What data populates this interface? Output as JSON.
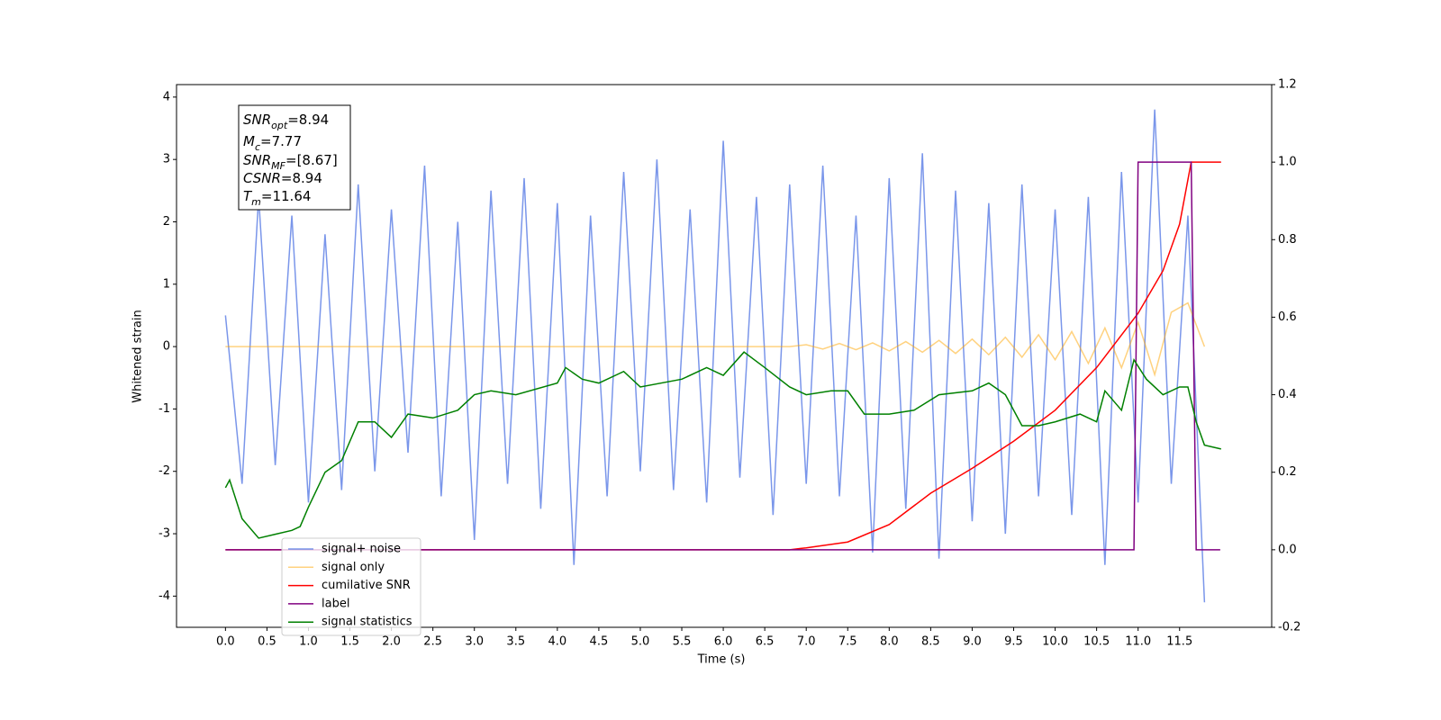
{
  "chart_data": {
    "type": "line",
    "xlabel": "Time (s)",
    "ylabel": "Whitened strain",
    "xlim": [
      -0.59,
      12.61
    ],
    "xticks": [
      {
        "value": 0,
        "label": "0.0"
      },
      {
        "value": 0.5,
        "label": "0.5"
      },
      {
        "value": 1,
        "label": "1.0"
      },
      {
        "value": 1.5,
        "label": "1.5"
      },
      {
        "value": 2,
        "label": "2.0"
      },
      {
        "value": 2.5,
        "label": "2.5"
      },
      {
        "value": 3,
        "label": "3.0"
      },
      {
        "value": 3.5,
        "label": "3.5"
      },
      {
        "value": 4,
        "label": "4.0"
      },
      {
        "value": 4.5,
        "label": "4.5"
      },
      {
        "value": 5,
        "label": "5.0"
      },
      {
        "value": 5.5,
        "label": "5.5"
      },
      {
        "value": 6,
        "label": "6.0"
      },
      {
        "value": 6.5,
        "label": "6.5"
      },
      {
        "value": 7,
        "label": "7.0"
      },
      {
        "value": 7.5,
        "label": "7.5"
      },
      {
        "value": 8,
        "label": "8.0"
      },
      {
        "value": 8.5,
        "label": "8.5"
      },
      {
        "value": 9,
        "label": "9.0"
      },
      {
        "value": 9.5,
        "label": "9.5"
      },
      {
        "value": 10,
        "label": "10.0"
      },
      {
        "value": 10.5,
        "label": "10.5"
      },
      {
        "value": 11,
        "label": "11.0"
      },
      {
        "value": 11.5,
        "label": "11.5"
      }
    ],
    "ylim": [
      -4.5,
      4.2
    ],
    "yticks": [
      -4,
      -3,
      -2,
      -1,
      0,
      1,
      2,
      3,
      4
    ],
    "y2lim": [
      -0.2,
      1.2
    ],
    "y2ticks": [
      -0.2,
      0.0,
      0.2,
      0.4,
      0.6,
      0.8,
      1.0,
      1.2
    ],
    "legend": "lower left",
    "annotation": [
      [
        "SNR",
        "opt",
        "=8.94"
      ],
      [
        "M",
        "c",
        "=7.77"
      ],
      [
        "SNR",
        "MF",
        "=[8.67]"
      ],
      [
        "CSNR",
        "",
        "=8.94"
      ],
      [
        "T",
        "m",
        "=11.64"
      ]
    ],
    "series": [
      {
        "name": "signal+ noise",
        "color": "#4169e1",
        "opacity": 0.7,
        "axis": "y",
        "x": [
          0,
          0.2,
          0.4,
          0.6,
          0.8,
          1,
          1.2,
          1.4,
          1.6,
          1.8,
          2,
          2.2,
          2.4,
          2.6,
          2.8,
          3,
          3.2,
          3.4,
          3.6,
          3.8,
          4,
          4.2,
          4.4,
          4.6,
          4.8,
          5,
          5.2,
          5.4,
          5.6,
          5.8,
          6,
          6.2,
          6.4,
          6.6,
          6.8,
          7,
          7.2,
          7.4,
          7.6,
          7.8,
          8,
          8.2,
          8.4,
          8.6,
          8.8,
          9,
          9.2,
          9.4,
          9.6,
          9.8,
          10,
          10.2,
          10.4,
          10.6,
          10.8,
          11,
          11.2,
          11.4,
          11.6,
          11.8
        ],
        "values": [
          0.5,
          -2.2,
          2.4,
          -1.9,
          2.1,
          -2.5,
          1.8,
          -2.3,
          2.6,
          -2.0,
          2.2,
          -1.7,
          2.9,
          -2.4,
          2.0,
          -3.1,
          2.5,
          -2.2,
          2.7,
          -2.6,
          2.3,
          -3.5,
          2.1,
          -2.4,
          2.8,
          -2.0,
          3.0,
          -2.3,
          2.2,
          -2.5,
          3.3,
          -2.1,
          2.4,
          -2.7,
          2.6,
          -2.2,
          2.9,
          -2.4,
          2.1,
          -3.3,
          2.7,
          -2.6,
          3.1,
          -3.4,
          2.5,
          -2.8,
          2.3,
          -3.0,
          2.6,
          -2.4,
          2.2,
          -2.7,
          2.4,
          -3.5,
          2.8,
          -2.5,
          3.8,
          -2.2,
          2.1,
          -4.1
        ]
      },
      {
        "name": "signal only",
        "color": "#ffa500",
        "opacity": 0.5,
        "axis": "y",
        "x": [
          0,
          0.2,
          0.4,
          0.6,
          0.8,
          1,
          1.2,
          1.4,
          1.6,
          1.8,
          2,
          2.2,
          2.4,
          2.6,
          2.8,
          3,
          3.2,
          3.4,
          3.6,
          3.8,
          4,
          4.2,
          4.4,
          4.6,
          4.8,
          5,
          5.2,
          5.4,
          5.6,
          5.8,
          6,
          6.2,
          6.4,
          6.6,
          6.8,
          7,
          7.2,
          7.4,
          7.6,
          7.8,
          8,
          8.2,
          8.4,
          8.6,
          8.8,
          9,
          9.2,
          9.4,
          9.6,
          9.8,
          10,
          10.2,
          10.4,
          10.6,
          10.8,
          11,
          11.2,
          11.4,
          11.6,
          11.8
        ],
        "values": [
          0,
          0,
          0,
          0,
          0,
          0,
          0,
          0,
          0,
          0,
          0,
          0,
          0,
          0,
          0,
          0,
          0,
          0,
          0,
          0,
          0,
          0,
          0,
          0,
          0,
          0,
          0,
          0,
          0,
          0,
          0,
          0,
          0,
          0,
          0,
          0.03,
          -0.04,
          0.05,
          -0.05,
          0.06,
          -0.07,
          0.08,
          -0.09,
          0.1,
          -0.11,
          0.12,
          -0.13,
          0.15,
          -0.17,
          0.19,
          -0.21,
          0.24,
          -0.27,
          0.3,
          -0.34,
          0.39,
          -0.45,
          0.55,
          0.7,
          0
        ]
      },
      {
        "name": "cumilative SNR",
        "color": "#ff0000",
        "opacity": 1,
        "axis": "y2",
        "x": [
          0,
          6.8,
          7,
          7.5,
          8,
          8.5,
          9,
          9.5,
          10,
          10.5,
          11,
          11.3,
          11.5,
          11.64,
          12
        ],
        "values": [
          0,
          0,
          0.005,
          0.02,
          0.065,
          0.146,
          0.21,
          0.28,
          0.36,
          0.47,
          0.61,
          0.72,
          0.84,
          1,
          1
        ]
      },
      {
        "name": "label",
        "color": "#800080",
        "opacity": 1,
        "axis": "y2",
        "x": [
          0,
          10.95,
          11,
          11.64,
          11.7,
          11.99
        ],
        "values": [
          0,
          0,
          1,
          1,
          0,
          0
        ]
      },
      {
        "name": "signal statistics",
        "color": "#008000",
        "opacity": 1,
        "axis": "y2",
        "x": [
          0,
          0.05,
          0.2,
          0.4,
          0.6,
          0.8,
          0.9,
          1,
          1.2,
          1.4,
          1.6,
          1.8,
          2,
          2.2,
          2.5,
          2.8,
          3,
          3.2,
          3.5,
          4,
          4.1,
          4.3,
          4.5,
          4.8,
          5,
          5.5,
          5.8,
          6,
          6.25,
          6.5,
          6.8,
          7,
          7.3,
          7.5,
          7.7,
          8,
          8.3,
          8.6,
          9,
          9.2,
          9.4,
          9.6,
          9.8,
          10,
          10.3,
          10.5,
          10.6,
          10.8,
          10.95,
          11.1,
          11.3,
          11.5,
          11.6,
          11.7,
          11.8,
          12
        ],
        "values": [
          0.16,
          0.18,
          0.08,
          0.03,
          0.04,
          0.05,
          0.06,
          0.11,
          0.2,
          0.23,
          0.33,
          0.33,
          0.29,
          0.35,
          0.34,
          0.36,
          0.4,
          0.41,
          0.4,
          0.43,
          0.47,
          0.44,
          0.43,
          0.46,
          0.42,
          0.44,
          0.47,
          0.45,
          0.51,
          0.47,
          0.42,
          0.4,
          0.41,
          0.41,
          0.35,
          0.35,
          0.36,
          0.4,
          0.41,
          0.43,
          0.4,
          0.32,
          0.32,
          0.33,
          0.35,
          0.33,
          0.41,
          0.36,
          0.49,
          0.44,
          0.4,
          0.42,
          0.42,
          0.33,
          0.27,
          0.26
        ]
      }
    ]
  }
}
